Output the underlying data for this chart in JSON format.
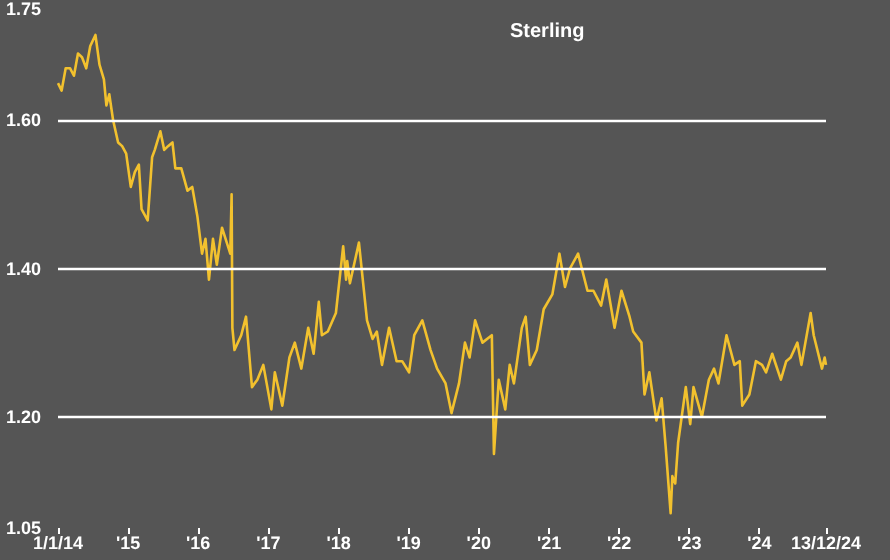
{
  "chart_data": {
    "type": "line",
    "title": "Sterling",
    "x": [
      "2014-01-01",
      "2014-01-20",
      "2014-02-10",
      "2014-03-05",
      "2014-03-25",
      "2014-04-15",
      "2014-05-06",
      "2014-05-28",
      "2014-06-18",
      "2014-07-15",
      "2014-08-05",
      "2014-08-28",
      "2014-09-10",
      "2014-09-25",
      "2014-10-15",
      "2014-11-10",
      "2014-12-01",
      "2014-12-22",
      "2015-01-15",
      "2015-02-05",
      "2015-02-26",
      "2015-03-12",
      "2015-04-13",
      "2015-05-06",
      "2015-05-20",
      "2015-06-18",
      "2015-07-08",
      "2015-07-28",
      "2015-08-20",
      "2015-09-04",
      "2015-10-05",
      "2015-11-06",
      "2015-12-01",
      "2015-12-28",
      "2016-01-21",
      "2016-02-08",
      "2016-02-26",
      "2016-03-18",
      "2016-04-07",
      "2016-05-04",
      "2016-06-16",
      "2016-06-23",
      "2016-06-27",
      "2016-07-08",
      "2016-08-12",
      "2016-09-06",
      "2016-10-07",
      "2016-11-04",
      "2016-12-05",
      "2017-01-16",
      "2017-02-03",
      "2017-03-14",
      "2017-04-20",
      "2017-05-18",
      "2017-06-21",
      "2017-07-27",
      "2017-08-24",
      "2017-09-20",
      "2017-10-06",
      "2017-11-06",
      "2017-12-18",
      "2018-01-25",
      "2018-02-09",
      "2018-02-15",
      "2018-03-01",
      "2018-04-17",
      "2018-05-29",
      "2018-06-27",
      "2018-07-19",
      "2018-08-15",
      "2018-09-21",
      "2018-10-30",
      "2018-11-28",
      "2019-01-03",
      "2019-01-30",
      "2019-03-13",
      "2019-04-25",
      "2019-05-29",
      "2019-07-12",
      "2019-08-12",
      "2019-09-20",
      "2019-10-21",
      "2019-11-14",
      "2019-12-13",
      "2020-01-20",
      "2020-03-09",
      "2020-03-20",
      "2020-04-14",
      "2020-05-18",
      "2020-06-10",
      "2020-07-02",
      "2020-08-12",
      "2020-09-01",
      "2020-09-23",
      "2020-10-29",
      "2020-12-04",
      "2021-01-18",
      "2021-02-24",
      "2021-03-25",
      "2021-04-20",
      "2021-06-01",
      "2021-07-20",
      "2021-08-20",
      "2021-09-29",
      "2021-10-26",
      "2021-12-08",
      "2022-01-13",
      "2022-02-24",
      "2022-03-15",
      "2022-04-27",
      "2022-05-13",
      "2022-06-07",
      "2022-07-14",
      "2022-08-10",
      "2022-08-31",
      "2022-09-26",
      "2022-10-05",
      "2022-10-20",
      "2022-11-04",
      "2022-12-14",
      "2023-01-06",
      "2023-01-23",
      "2023-03-08",
      "2023-04-13",
      "2023-05-10",
      "2023-06-02",
      "2023-07-14",
      "2023-08-24",
      "2023-09-21",
      "2023-10-04",
      "2023-11-10",
      "2023-12-14",
      "2024-01-15",
      "2024-02-05",
      "2024-03-08",
      "2024-04-22",
      "2024-05-20",
      "2024-06-12",
      "2024-07-17",
      "2024-08-07",
      "2024-09-24",
      "2024-10-10",
      "2024-11-22",
      "2024-12-06",
      "2024-12-13"
    ],
    "values": [
      1.65,
      1.64,
      1.67,
      1.67,
      1.66,
      1.69,
      1.685,
      1.67,
      1.7,
      1.715,
      1.675,
      1.655,
      1.62,
      1.635,
      1.6,
      1.57,
      1.565,
      1.555,
      1.51,
      1.53,
      1.54,
      1.48,
      1.465,
      1.55,
      1.56,
      1.585,
      1.56,
      1.565,
      1.57,
      1.535,
      1.535,
      1.505,
      1.51,
      1.47,
      1.42,
      1.44,
      1.385,
      1.44,
      1.405,
      1.455,
      1.42,
      1.5,
      1.32,
      1.29,
      1.31,
      1.335,
      1.24,
      1.25,
      1.27,
      1.21,
      1.26,
      1.215,
      1.28,
      1.3,
      1.265,
      1.32,
      1.285,
      1.355,
      1.31,
      1.315,
      1.34,
      1.43,
      1.385,
      1.41,
      1.38,
      1.435,
      1.33,
      1.305,
      1.315,
      1.27,
      1.32,
      1.275,
      1.275,
      1.26,
      1.31,
      1.33,
      1.29,
      1.265,
      1.245,
      1.205,
      1.245,
      1.3,
      1.28,
      1.33,
      1.3,
      1.31,
      1.15,
      1.25,
      1.21,
      1.27,
      1.245,
      1.32,
      1.335,
      1.27,
      1.29,
      1.345,
      1.365,
      1.42,
      1.375,
      1.4,
      1.42,
      1.37,
      1.37,
      1.35,
      1.385,
      1.32,
      1.37,
      1.335,
      1.315,
      1.3,
      1.23,
      1.26,
      1.195,
      1.225,
      1.16,
      1.07,
      1.12,
      1.11,
      1.165,
      1.24,
      1.19,
      1.24,
      1.2,
      1.25,
      1.265,
      1.245,
      1.31,
      1.27,
      1.275,
      1.215,
      1.23,
      1.275,
      1.27,
      1.26,
      1.285,
      1.25,
      1.275,
      1.28,
      1.3,
      1.27,
      1.34,
      1.31,
      1.265,
      1.28,
      1.27
    ],
    "color": "#f2c12e",
    "xlim": [
      "2014-01-01",
      "2024-12-13"
    ],
    "xticks": [
      {
        "value": "2014-01-01",
        "label": "1/1/14"
      },
      {
        "value": "2015-01-01",
        "label": "'15"
      },
      {
        "value": "2016-01-01",
        "label": "'16"
      },
      {
        "value": "2017-01-01",
        "label": "'17"
      },
      {
        "value": "2018-01-01",
        "label": "'18"
      },
      {
        "value": "2019-01-01",
        "label": "'19"
      },
      {
        "value": "2020-01-01",
        "label": "'20"
      },
      {
        "value": "2021-01-01",
        "label": "'21"
      },
      {
        "value": "2022-01-01",
        "label": "'22"
      },
      {
        "value": "2023-01-01",
        "label": "'23"
      },
      {
        "value": "2024-01-01",
        "label": "'24"
      },
      {
        "value": "2024-12-13",
        "label": "13/12/24"
      }
    ],
    "ylim": [
      1.05,
      1.75
    ],
    "yticks": [
      {
        "value": 1.05,
        "label": "1.05"
      },
      {
        "value": 1.2,
        "label": "1.20"
      },
      {
        "value": 1.4,
        "label": "1.40"
      },
      {
        "value": 1.6,
        "label": "1.60"
      },
      {
        "value": 1.75,
        "label": "1.75"
      }
    ],
    "grid": "y",
    "marker": "none",
    "line_style": "solid"
  }
}
